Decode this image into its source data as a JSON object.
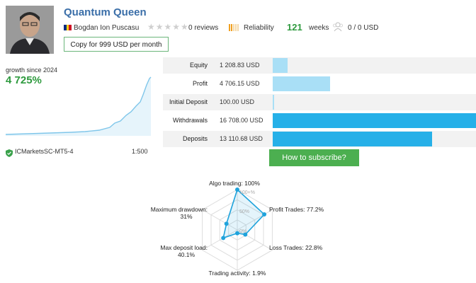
{
  "header": {
    "title": "Quantum Queen",
    "author": "Bogdan Ion Puscasu",
    "reviews": "0 reviews",
    "reliability": "Reliability",
    "weeks_number": "121",
    "weeks_label": "weeks",
    "subscribers": "0 / 0 USD",
    "copy_button": "Copy for 999 USD per month"
  },
  "growth": {
    "label": "growth since 2024",
    "value": "4 725%",
    "broker": "ICMarketsSC-MT5-4",
    "leverage": "1:500",
    "line_color": "#7fc6ea"
  },
  "metrics": [
    {
      "label": "Equity",
      "value": "1 208.83 USD",
      "amount": 1208.83
    },
    {
      "label": "Profit",
      "value": "4 706.15 USD",
      "amount": 4706.15
    },
    {
      "label": "Initial Deposit",
      "value": "100.00 USD",
      "amount": 100.0
    },
    {
      "label": "Withdrawals",
      "value": "16 708.00 USD",
      "amount": 16708.0
    },
    {
      "label": "Deposits",
      "value": "13 110.68 USD",
      "amount": 13110.68
    }
  ],
  "subscribe_button": "How to subscribe?",
  "radar": {
    "axes": [
      {
        "label": "Algo trading: 100%",
        "value": 100
      },
      {
        "label": "Profit Trades: 77.2%",
        "value": 77.2
      },
      {
        "label": "Loss Trades: 22.8%",
        "value": 22.8
      },
      {
        "label": "Trading activity: 1.9%",
        "value": 1.9
      },
      {
        "label_line1": "Max deposit load:",
        "label_line2": "40.1%",
        "value": 40.1
      },
      {
        "label_line1": "Maximum drawdown:",
        "label_line2": "31%",
        "value": 31
      }
    ],
    "tick_100": "100+%",
    "tick_50": "50%",
    "tick_0": "0%"
  },
  "colors": {
    "accent_blue": "#3a6ea8",
    "green": "#2e9a3e",
    "bar_light": "#a9dff6",
    "bar_strong": "#26b0e8",
    "radar_line": "#1fa3dc"
  }
}
